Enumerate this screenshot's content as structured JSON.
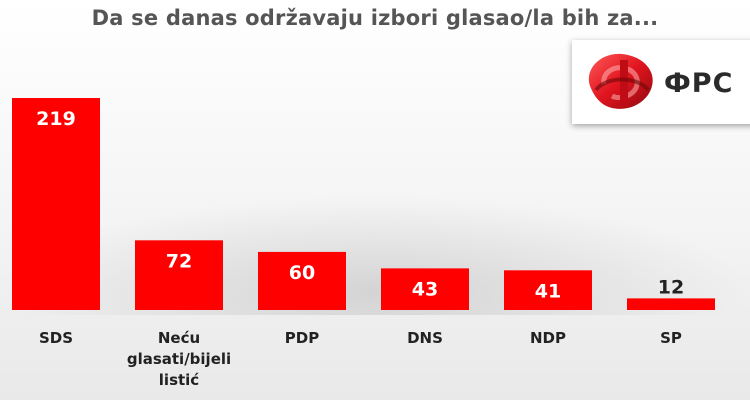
{
  "chart_data": {
    "type": "bar",
    "title": "Da se danas održavaju izbori glasao/la bih za...",
    "categories": [
      [
        "SDS"
      ],
      [
        "Neću",
        "glasati/bijeli",
        "listić"
      ],
      [
        "PDP"
      ],
      [
        "DNS"
      ],
      [
        "NDP"
      ],
      [
        "SP"
      ]
    ],
    "values": [
      219,
      72,
      60,
      43,
      41,
      12
    ],
    "ylim": [
      0,
      219
    ],
    "grid": false,
    "legend": "none",
    "bar_color": "#ff0000",
    "label_color_inside": "#ffffff",
    "label_color_outside": "#222222"
  },
  "logo": {
    "wordmark": "ФРС",
    "icon": "red-ribbon-logo-icon",
    "color": "#e0141e"
  }
}
